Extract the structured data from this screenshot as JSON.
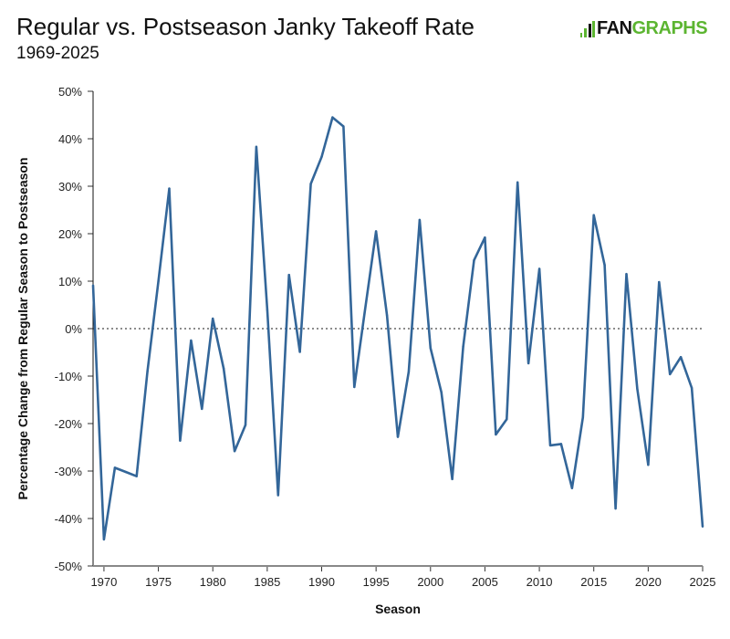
{
  "header": {
    "title": "Regular vs. Postseason Janky Takeoff Rate",
    "subtitle": "1969-2025",
    "logo_text": "FANGRAPHS"
  },
  "chart_data": {
    "type": "line",
    "title": "Regular vs. Postseason Janky Takeoff Rate",
    "subtitle": "1969-2025",
    "xlabel": "Season",
    "ylabel": "Percentage Change from Regular Season to Postseason",
    "xlim": [
      1969,
      2025
    ],
    "ylim": [
      -50,
      50
    ],
    "xticks": [
      1970,
      1975,
      1980,
      1985,
      1990,
      1995,
      2000,
      2005,
      2010,
      2015,
      2020,
      2025
    ],
    "yticks": [
      50,
      40,
      30,
      20,
      10,
      0,
      -10,
      -20,
      -30,
      -40,
      -50
    ],
    "ytick_labels": [
      "50%",
      "40%",
      "30%",
      "20%",
      "10%",
      "0%",
      "-10%",
      "-20%",
      "-30%",
      "-40%",
      "-50%"
    ],
    "reference_line": 0,
    "color": "#336699",
    "series": [
      {
        "name": "Percentage Change",
        "x": [
          1969,
          1970,
          1971,
          1972,
          1973,
          1974,
          1975,
          1976,
          1977,
          1978,
          1979,
          1980,
          1981,
          1982,
          1983,
          1984,
          1985,
          1986,
          1987,
          1988,
          1989,
          1990,
          1991,
          1992,
          1993,
          1994,
          1995,
          1996,
          1997,
          1998,
          1999,
          2000,
          2001,
          2002,
          2003,
          2004,
          2005,
          2006,
          2007,
          2008,
          2009,
          2010,
          2011,
          2012,
          2013,
          2014,
          2015,
          2016,
          2017,
          2018,
          2019,
          2020,
          2021,
          2022,
          2023,
          2024,
          2025
        ],
        "values": [
          9.1,
          -44.4,
          -29.3,
          -30.2,
          -31.1,
          -9.0,
          10.0,
          29.5,
          -23.6,
          -2.5,
          -16.9,
          2.1,
          -8.4,
          -25.8,
          -20.3,
          38.3,
          4.0,
          -35.1,
          11.3,
          -4.9,
          30.5,
          36.2,
          44.5,
          42.6,
          -12.3,
          4.2,
          20.5,
          2.8,
          -22.8,
          -9.1,
          22.9,
          -4.1,
          -13.4,
          -31.7,
          -3.8,
          14.4,
          19.2,
          -22.3,
          -19.1,
          30.8,
          -7.3,
          12.6,
          -24.6,
          -24.3,
          -33.6,
          -18.7,
          23.9,
          13.4,
          -37.9,
          11.5,
          -12.7,
          -28.7,
          9.8,
          -9.6,
          -6.0,
          -12.5,
          -41.7
        ]
      }
    ]
  }
}
